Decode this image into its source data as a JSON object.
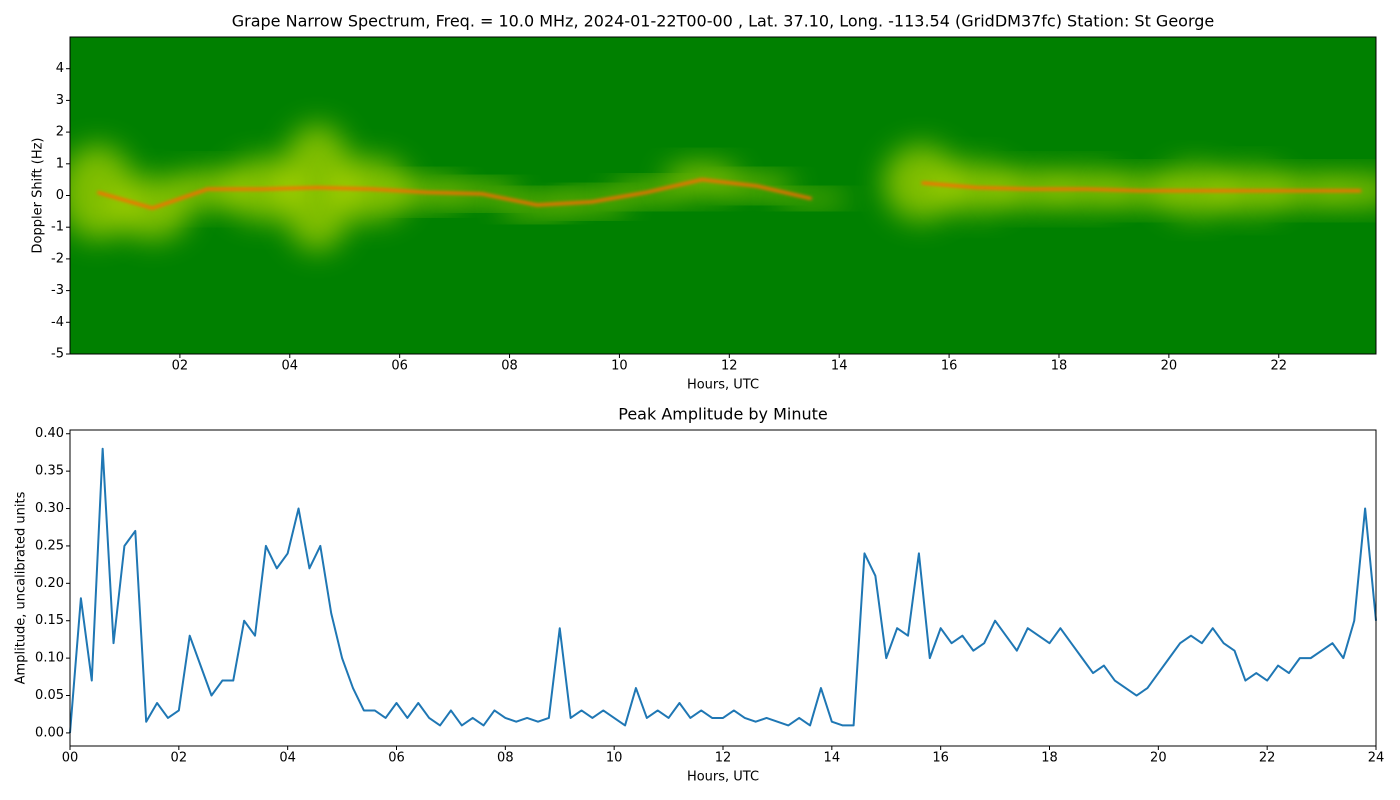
{
  "chart_data": [
    {
      "type": "spectrogram",
      "title": "Grape Narrow Spectrum, Freq. = 10.0 MHz, 2024-01-22T00-00 , Lat.  37.10, Long. -113.54 (GridDM37fc) Station: St George",
      "x_label": "Hours, UTC",
      "y_label": "Doppler Shift (Hz)",
      "x": [
        0,
        1,
        2,
        3,
        4,
        5,
        6,
        7,
        8,
        9,
        10,
        11,
        12,
        13,
        14,
        15,
        16,
        17,
        18,
        19,
        20,
        21,
        22,
        23
      ],
      "values": [
        0.1,
        -0.4,
        0.2,
        0.2,
        0.25,
        0.2,
        0.1,
        0.05,
        -0.3,
        -0.2,
        0.1,
        0.5,
        0.3,
        -0.1,
        null,
        0.4,
        0.25,
        0.2,
        0.2,
        0.15,
        0.15,
        0.15,
        0.15,
        0.15
      ],
      "spread": [
        1.5,
        1,
        0.6,
        1,
        2,
        1,
        0.4,
        0.3,
        0.3,
        0.3,
        0.3,
        0.5,
        0.3,
        0.2,
        0.1,
        1.2,
        0.8,
        0.6,
        0.6,
        0.5,
        0.8,
        0.7,
        0.5,
        0.5
      ],
      "background_color": "#008000",
      "glow_color": "#e6f000",
      "color": "#ff6a00",
      "xlim": [
        0,
        23.77
      ],
      "ylim": [
        -5,
        5
      ],
      "xticks": [
        {
          "value": 2,
          "label": "02"
        },
        {
          "value": 4,
          "label": "04"
        },
        {
          "value": 6,
          "label": "06"
        },
        {
          "value": 8,
          "label": "08"
        },
        {
          "value": 10,
          "label": "10"
        },
        {
          "value": 12,
          "label": "12"
        },
        {
          "value": 14,
          "label": "14"
        },
        {
          "value": 16,
          "label": "16"
        },
        {
          "value": 18,
          "label": "18"
        },
        {
          "value": 20,
          "label": "20"
        },
        {
          "value": 22,
          "label": "22"
        }
      ],
      "yticks": [
        -5,
        -4,
        -3,
        -2,
        -1,
        0,
        1,
        2,
        3,
        4
      ]
    },
    {
      "type": "line",
      "title": "Peak Amplitude by Minute",
      "x_label": "Hours, UTC",
      "y_label": "Amplitude, uncalibrated units",
      "x": [
        0,
        0.2,
        0.4,
        0.6,
        0.8,
        1,
        1.2,
        1.4,
        1.6,
        1.8,
        2,
        2.2,
        2.4,
        2.6,
        2.8,
        3,
        3.2,
        3.4,
        3.6,
        3.8,
        4,
        4.2,
        4.4,
        4.6,
        4.8,
        5,
        5.2,
        5.4,
        5.6,
        5.8,
        6,
        6.2,
        6.4,
        6.6,
        6.8,
        7,
        7.2,
        7.4,
        7.6,
        7.8,
        8,
        8.2,
        8.4,
        8.6,
        8.8,
        9,
        9.2,
        9.4,
        9.6,
        9.8,
        10,
        10.2,
        10.4,
        10.6,
        10.8,
        11,
        11.2,
        11.4,
        11.6,
        11.8,
        12,
        12.2,
        12.4,
        12.6,
        12.8,
        13,
        13.2,
        13.4,
        13.6,
        13.8,
        14,
        14.2,
        14.4,
        14.6,
        14.8,
        15,
        15.2,
        15.4,
        15.6,
        15.8,
        16,
        16.2,
        16.4,
        16.6,
        16.8,
        17,
        17.2,
        17.4,
        17.6,
        17.8,
        18,
        18.2,
        18.4,
        18.6,
        18.8,
        19,
        19.2,
        19.4,
        19.6,
        19.8,
        20,
        20.2,
        20.4,
        20.6,
        20.8,
        21,
        21.2,
        21.4,
        21.6,
        21.8,
        22,
        22.2,
        22.4,
        22.6,
        22.8,
        23,
        23.2,
        23.4,
        23.6,
        23.8,
        24
      ],
      "series": [
        {
          "name": "Peak Amplitude",
          "color": "#1f77b4",
          "values": [
            0,
            0.18,
            0.07,
            0.38,
            0.12,
            0.25,
            0.27,
            0.015,
            0.04,
            0.02,
            0.03,
            0.13,
            0.09,
            0.05,
            0.07,
            0.07,
            0.15,
            0.13,
            0.25,
            0.22,
            0.24,
            0.3,
            0.22,
            0.25,
            0.16,
            0.1,
            0.06,
            0.03,
            0.03,
            0.02,
            0.04,
            0.02,
            0.04,
            0.02,
            0.01,
            0.03,
            0.01,
            0.02,
            0.01,
            0.03,
            0.02,
            0.015,
            0.02,
            0.015,
            0.02,
            0.14,
            0.02,
            0.03,
            0.02,
            0.03,
            0.02,
            0.01,
            0.06,
            0.02,
            0.03,
            0.02,
            0.04,
            0.02,
            0.03,
            0.02,
            0.02,
            0.03,
            0.02,
            0.015,
            0.02,
            0.015,
            0.01,
            0.02,
            0.01,
            0.06,
            0.015,
            0.01,
            0.01,
            0.24,
            0.21,
            0.1,
            0.14,
            0.13,
            0.24,
            0.1,
            0.14,
            0.12,
            0.13,
            0.11,
            0.12,
            0.15,
            0.13,
            0.11,
            0.14,
            0.13,
            0.12,
            0.14,
            0.12,
            0.1,
            0.08,
            0.09,
            0.07,
            0.06,
            0.05,
            0.06,
            0.08,
            0.1,
            0.12,
            0.13,
            0.12,
            0.14,
            0.12,
            0.11,
            0.07,
            0.08,
            0.07,
            0.09,
            0.08,
            0.1,
            0.1,
            0.11,
            0.12,
            0.1,
            0.15,
            0.3,
            0.15
          ]
        }
      ],
      "xlim": [
        0,
        24
      ],
      "ylim": [
        -0.0175,
        0.405
      ],
      "xticks": [
        {
          "value": 0,
          "label": "00"
        },
        {
          "value": 2,
          "label": "02"
        },
        {
          "value": 4,
          "label": "04"
        },
        {
          "value": 6,
          "label": "06"
        },
        {
          "value": 8,
          "label": "08"
        },
        {
          "value": 10,
          "label": "10"
        },
        {
          "value": 12,
          "label": "12"
        },
        {
          "value": 14,
          "label": "14"
        },
        {
          "value": 16,
          "label": "16"
        },
        {
          "value": 18,
          "label": "18"
        },
        {
          "value": 20,
          "label": "20"
        },
        {
          "value": 22,
          "label": "22"
        },
        {
          "value": 24,
          "label": "24"
        }
      ],
      "yticks": [
        {
          "value": 0,
          "label": "0.00"
        },
        {
          "value": 0.05,
          "label": "0.05"
        },
        {
          "value": 0.1,
          "label": "0.10"
        },
        {
          "value": 0.15,
          "label": "0.15"
        },
        {
          "value": 0.2,
          "label": "0.20"
        },
        {
          "value": 0.25,
          "label": "0.25"
        },
        {
          "value": 0.3,
          "label": "0.30"
        },
        {
          "value": 0.35,
          "label": "0.35"
        },
        {
          "value": 0.4,
          "label": "0.40"
        }
      ]
    }
  ]
}
